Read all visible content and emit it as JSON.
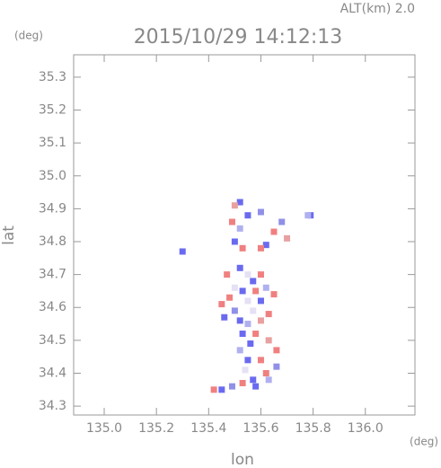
{
  "chart_data": {
    "type": "scatter",
    "annotation": "ALT(km) 2.0",
    "title": "2015/10/29 14:12:13",
    "y_unit": "(deg)",
    "x_unit": "(deg)",
    "x_label": "lon",
    "y_label": "lat",
    "xlim": [
      134.883,
      136.19
    ],
    "ylim": [
      34.273,
      35.368
    ],
    "xticks": [
      {
        "value": 135,
        "label": "135.0"
      },
      135.2,
      135.4,
      135.6,
      135.8,
      {
        "value": 136,
        "label": "136.0"
      }
    ],
    "yticks": [
      34.3,
      34.4,
      34.5,
      34.6,
      34.7,
      34.8,
      34.9,
      {
        "value": 35,
        "label": "35.0"
      },
      35.1,
      35.2,
      35.3
    ],
    "x": [
      135.52,
      135.5,
      135.55,
      135.49,
      135.52,
      135.5,
      135.53,
      135.6,
      135.62,
      135.6,
      135.65,
      135.68,
      135.7,
      135.79,
      135.78,
      135.3,
      135.47,
      135.52,
      135.55,
      135.57,
      135.6,
      135.5,
      135.53,
      135.58,
      135.62,
      135.48,
      135.55,
      135.6,
      135.65,
      135.45,
      135.5,
      135.57,
      135.63,
      135.52,
      135.6,
      135.55,
      135.46,
      135.53,
      135.58,
      135.63,
      135.56,
      135.66,
      135.52,
      135.55,
      135.6,
      135.66,
      135.54,
      135.62,
      135.57,
      135.63,
      135.58,
      135.53,
      135.49,
      135.45,
      135.42
    ],
    "values": [
      34.92,
      34.91,
      34.88,
      34.86,
      34.84,
      34.8,
      34.78,
      34.89,
      34.79,
      34.78,
      34.83,
      34.86,
      34.81,
      34.88,
      34.88,
      34.77,
      34.7,
      34.72,
      34.7,
      34.68,
      34.7,
      34.66,
      34.65,
      34.65,
      34.66,
      34.63,
      34.62,
      34.62,
      34.64,
      34.61,
      34.59,
      34.59,
      34.58,
      34.56,
      34.56,
      34.55,
      34.57,
      34.52,
      34.52,
      34.5,
      34.49,
      34.47,
      34.47,
      34.44,
      34.44,
      34.42,
      34.41,
      34.4,
      34.38,
      34.38,
      34.36,
      34.37,
      34.36,
      34.35,
      34.35
    ],
    "colors": [
      "#6a6af0",
      "#e8a0a0",
      "#6a6af0",
      "#f08080",
      "#b0b0f0",
      "#6a6af0",
      "#f08080",
      "#9090e8",
      "#6a6af0",
      "#f08080",
      "#f08080",
      "#9090e8",
      "#e8a0a0",
      "#6a6af0",
      "#b0b0f0",
      "#6a6af0",
      "#f08080",
      "#6a6af0",
      "#e6e0f5",
      "#6a6af0",
      "#f08080",
      "#e6e0f5",
      "#6a6af0",
      "#f08080",
      "#b0b0f0",
      "#f08080",
      "#e6e0f5",
      "#6a6af0",
      "#f08080",
      "#f08080",
      "#9090e8",
      "#e6e0f5",
      "#f08080",
      "#6a6af0",
      "#e8a0a0",
      "#b0b0f0",
      "#6a6af0",
      "#6a6af0",
      "#f08080",
      "#e8a0a0",
      "#6a6af0",
      "#f08080",
      "#b0b0f0",
      "#6a6af0",
      "#f08080",
      "#9090e8",
      "#e6e0f5",
      "#f08080",
      "#6a6af0",
      "#b0b0f0",
      "#6a6af0",
      "#f08080",
      "#9090e8",
      "#6a6af0",
      "#f08080"
    ]
  }
}
